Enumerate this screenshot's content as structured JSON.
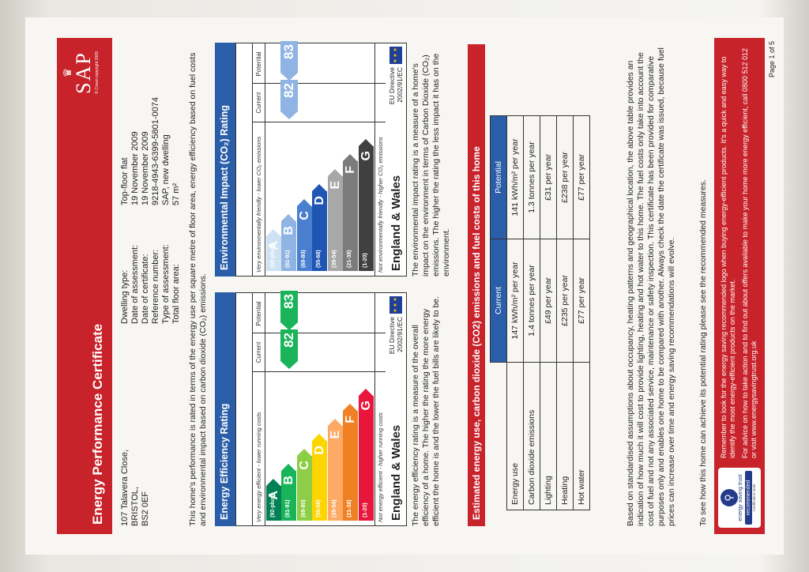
{
  "header": {
    "title": "Energy Performance Certificate",
    "logo_text": "SAP",
    "logo_tagline": "© Crown copyright 2009"
  },
  "address": {
    "line1": "107 Talavera Close,",
    "line2": "BRISTOL,",
    "line3": "BS2 0EF"
  },
  "details": [
    {
      "label": "Dwelling type:",
      "value": "Top-floor flat"
    },
    {
      "label": "Date of assessment:",
      "value": "19 November 2009"
    },
    {
      "label": "Date of certificate:",
      "value": "19 November 2009"
    },
    {
      "label": "Reference number:",
      "value": "9218-4943-6399-5801-0074"
    },
    {
      "label": "Type of assessment:",
      "value": "SAP, new dwelling"
    },
    {
      "label": "Total floor area:",
      "value": "57 m²"
    }
  ],
  "intro": "This home's performance is rated in terms of the energy use per square metre of floor area, energy efficiency based on fuel costs and environmental impact based on carbon dioxide (CO₂) emissions.",
  "efficiency": {
    "title": "Energy Efficiency Rating",
    "col_current": "Current",
    "col_potential": "Potential",
    "top_note": "Very energy efficient - lower running costs",
    "bottom_note": "Not energy efficient - higher running costs",
    "bands": [
      {
        "range": "(92-plus)",
        "letter": "A",
        "color": "#008054"
      },
      {
        "range": "(81-91)",
        "letter": "B",
        "color": "#19b459"
      },
      {
        "range": "(69-80)",
        "letter": "C",
        "color": "#8dce46"
      },
      {
        "range": "(55-68)",
        "letter": "D",
        "color": "#ffd500"
      },
      {
        "range": "(39-54)",
        "letter": "E",
        "color": "#fcaa65"
      },
      {
        "range": "(21-38)",
        "letter": "F",
        "color": "#ef8023"
      },
      {
        "range": "(1-20)",
        "letter": "G",
        "color": "#e9153b"
      }
    ],
    "current": 82,
    "potential": 83,
    "region": "England & Wales",
    "directive_line1": "EU Directive",
    "directive_line2": "2002/91/EC",
    "description": "The energy efficiency rating is a measure of the overall efficiency of a home. The higher the rating the more energy efficient the home is and the lower the fuel bills are likely to be."
  },
  "environment": {
    "title": "Environmental Impact (CO₂) Rating",
    "col_current": "Current",
    "col_potential": "Potential",
    "top_note": "Very environmentally friendly - lower CO₂ emissions",
    "bottom_note": "Not environmentally friendly - higher CO₂ emissions",
    "bands": [
      {
        "range": "(92-plus)",
        "letter": "A",
        "color": "#cfe2f3"
      },
      {
        "range": "(81-91)",
        "letter": "B",
        "color": "#8fb4e3"
      },
      {
        "range": "(69-80)",
        "letter": "C",
        "color": "#4a7fd0"
      },
      {
        "range": "(55-68)",
        "letter": "D",
        "color": "#1f56b4"
      },
      {
        "range": "(39-54)",
        "letter": "E",
        "color": "#a8a8a8"
      },
      {
        "range": "(21-38)",
        "letter": "F",
        "color": "#7b7b7b"
      },
      {
        "range": "(1-20)",
        "letter": "G",
        "color": "#404040"
      }
    ],
    "current": 82,
    "potential": 83,
    "region": "England & Wales",
    "directive_line1": "EU Directive",
    "directive_line2": "2002/91/EC",
    "description": "The environmental impact rating is a measure of a home's impact on the environment in terms of Carbon Dioxide (CO₂) emissions. The higher the rating the less impact it has on the environment."
  },
  "costs": {
    "title": "Estimated energy use, carbon dioxide (CO2) emissions and fuel costs of this home",
    "col_current": "Current",
    "col_potential": "Potential",
    "rows": [
      {
        "label": "Energy use",
        "current": "147 kWh/m² per year",
        "potential": "141 kWh/m² per year"
      },
      {
        "label": "Carbon dioxide emissions",
        "current": "1.4 tonnes per year",
        "potential": "1.3 tonnes per year"
      },
      {
        "label": "Lighting",
        "current": "£49 per year",
        "potential": "£31 per year"
      },
      {
        "label": "Heating",
        "current": "£235 per year",
        "potential": "£238 per year"
      },
      {
        "label": "Hot water",
        "current": "£77 per year",
        "potential": "£77 per year"
      }
    ]
  },
  "assumptions": "Based on standardised assumptions about occupancy, heating patterns and geographical location, the above table provides an indication of how much it will cost to provide lighting, heating and hot water to this home. The fuel costs only take into account the cost of fuel and not any associated service, maintenance or safety inspection. This certificate has been provided for comparative purposes only and enables one home to be compared with another. Always check the date the certificate was issued, because fuel prices can increase over time and energy saving recommendations will evolve.",
  "potential_note": "To see how this home can achieve its potential rating please see the recommended measures.",
  "footer": {
    "logo_line1": "energy",
    "logo_line2": "saving",
    "logo_line3": "trust",
    "badge": "recommended",
    "cert_mark": "Certification mark",
    "text1": "Remember to look for the energy saving recommended logo when buying energy-efficient products. It's a quick and easy way to identify the most energy-efficient products on the market.",
    "text2": "For advice on how to take action and to find out about offers available to make your home more energy efficient, call 0800 512 012 or visit www.energysavingtrust.org.uk"
  },
  "page_number": "Page 1 of 5"
}
